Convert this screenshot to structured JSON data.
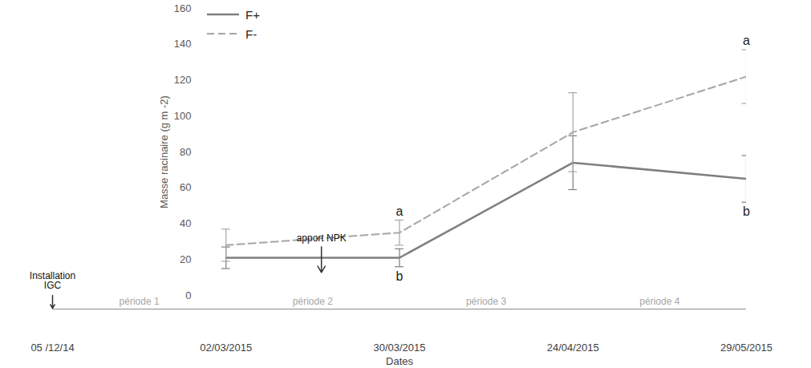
{
  "chart_data": {
    "type": "line",
    "x_label": "Dates",
    "y_label": "Masse racinaire (g m -2)",
    "categories": [
      "05 /12/14",
      "02/03/2015",
      "30/03/2015",
      "24/04/2015",
      "29/05/2015"
    ],
    "ylim": [
      0,
      160
    ],
    "yticks": [
      0,
      20,
      40,
      60,
      80,
      100,
      120,
      140,
      160
    ],
    "grid": false,
    "legend": "top-left",
    "annotations": [
      "Installation\nIGC",
      "apport NPK",
      "période 1",
      "période 2",
      "période 3",
      "période 4"
    ],
    "series": [
      {
        "name": "F+",
        "color": "#7f7f7f",
        "line_style": "solid",
        "values": [
          null,
          21,
          21,
          74,
          65
        ],
        "errors": [
          null,
          6,
          5,
          15,
          13
        ],
        "letters": [
          null,
          null,
          "b",
          null,
          "b"
        ]
      },
      {
        "name": "F-",
        "color": "#a6a6a6",
        "line_style": "dashed",
        "values": [
          null,
          28,
          35,
          91,
          122
        ],
        "errors": [
          null,
          9,
          7,
          22,
          15
        ],
        "letters": [
          null,
          null,
          "a",
          null,
          "a"
        ]
      }
    ]
  }
}
